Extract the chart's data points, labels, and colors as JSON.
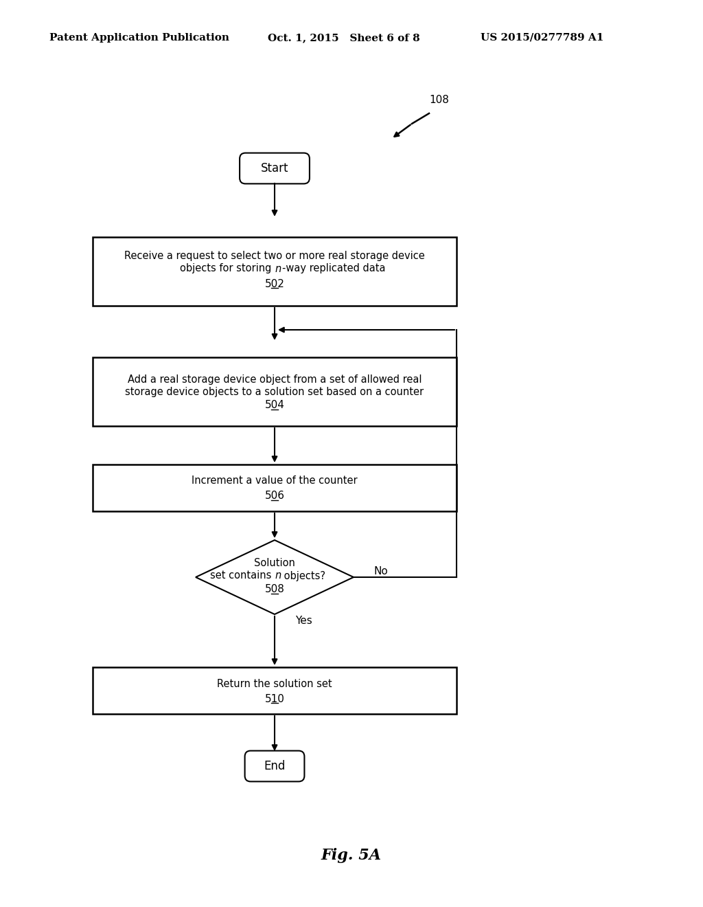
{
  "title_left": "Patent Application Publication",
  "title_mid": "Oct. 1, 2015   Sheet 6 of 8",
  "title_right": "US 2015/0277789 A1",
  "fig_label": "Fig. 5A",
  "fig_num": "108",
  "background_color": "#ffffff"
}
